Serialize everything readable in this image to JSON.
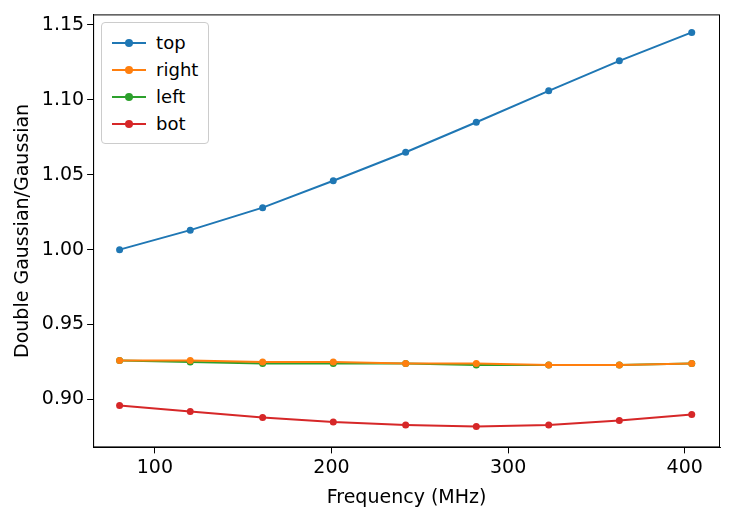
{
  "chart_data": {
    "type": "line",
    "x_label": "Frequency (MHz)",
    "y_label": "Double Gaussian/Gaussian",
    "x": [
      80,
      120,
      161,
      201,
      242,
      282,
      323,
      363,
      404
    ],
    "series": [
      {
        "name": "top",
        "color": "#1f77b4",
        "values": [
          1.0,
          1.013,
          1.028,
          1.046,
          1.065,
          1.085,
          1.106,
          1.126,
          1.145
        ]
      },
      {
        "name": "right",
        "color": "#ff7f0e",
        "values": [
          0.926,
          0.926,
          0.925,
          0.925,
          0.924,
          0.924,
          0.923,
          0.923,
          0.924
        ]
      },
      {
        "name": "left",
        "color": "#2ca02c",
        "values": [
          0.926,
          0.925,
          0.924,
          0.924,
          0.924,
          0.923,
          0.923,
          0.923,
          0.924
        ]
      },
      {
        "name": "bot",
        "color": "#d62728",
        "values": [
          0.896,
          0.892,
          0.888,
          0.885,
          0.883,
          0.882,
          0.883,
          0.886,
          0.89
        ]
      }
    ],
    "xlim": [
      65,
      420
    ],
    "xticks": [
      100,
      200,
      300,
      400
    ],
    "ylim": [
      0.868,
      1.157
    ],
    "yticks": [
      {
        "value": 0.9,
        "label": "0.90"
      },
      0.95,
      {
        "value": 1.0,
        "label": "1.00"
      },
      1.05,
      {
        "value": 1.1,
        "label": "1.10"
      },
      1.15
    ],
    "grid": false,
    "legend": "upper left",
    "marker": "circle"
  }
}
